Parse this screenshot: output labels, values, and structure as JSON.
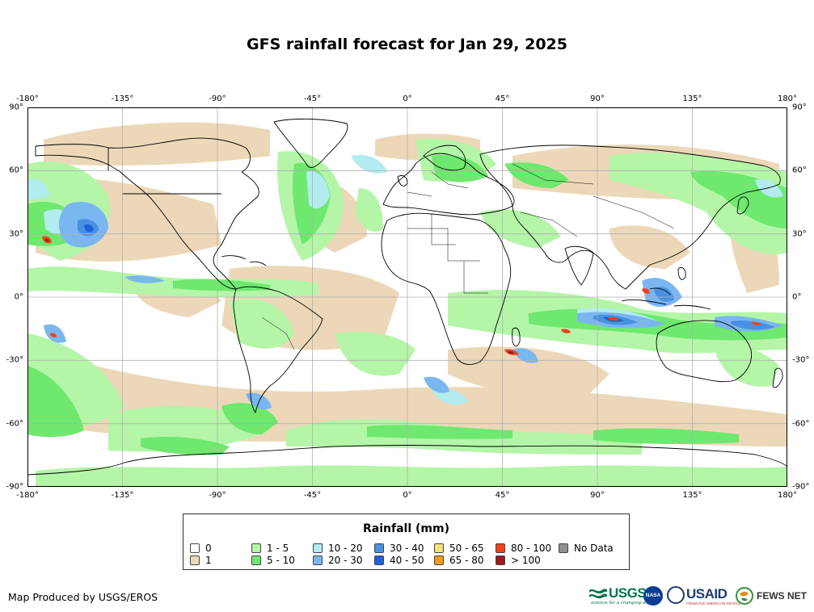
{
  "title": "GFS rainfall forecast for Jan 29, 2025",
  "lon_ticks": [
    "-180°",
    "-135°",
    "-90°",
    "-45°",
    "0°",
    "45°",
    "90°",
    "135°",
    "180°"
  ],
  "lat_ticks": [
    "90°",
    "60°",
    "30°",
    "0°",
    "-30°",
    "-60°",
    "-90°"
  ],
  "legend": {
    "title": "Rainfall (mm)",
    "items": [
      {
        "label": "0",
        "color": "#ffffff"
      },
      {
        "label": "1",
        "color": "#ecd8b8"
      },
      {
        "label": "1 - 5",
        "color": "#b4f5a8"
      },
      {
        "label": "5 - 10",
        "color": "#6ee86e"
      },
      {
        "label": "10 - 20",
        "color": "#b2ecee"
      },
      {
        "label": "20 - 30",
        "color": "#7ab6f0"
      },
      {
        "label": "30 - 40",
        "color": "#4a90e2"
      },
      {
        "label": "40 - 50",
        "color": "#1f5fd8"
      },
      {
        "label": "50 - 65",
        "color": "#f7df7a"
      },
      {
        "label": "65 - 80",
        "color": "#f49a1a"
      },
      {
        "label": "80 - 100",
        "color": "#f0421c"
      },
      {
        "label": "> 100",
        "color": "#9a1c1c"
      },
      {
        "label": "No Data",
        "color": "#909090"
      }
    ]
  },
  "credit": "Map Produced by USGS/EROS",
  "logos": {
    "usgs": "USGS",
    "usgs_tagline": "science for a changing world",
    "nasa": "NASA",
    "usaid": "USAID",
    "usaid_tagline": "FROM THE AMERICAN PEOPLE",
    "fews": "FEWS NET"
  },
  "colors": {
    "land_outline": "#000000",
    "grid": "#b0b0b0",
    "frame": "#000000"
  }
}
